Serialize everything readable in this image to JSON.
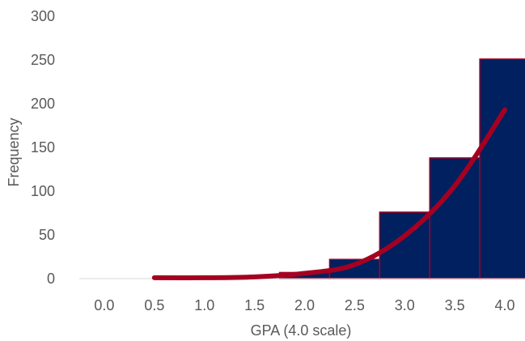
{
  "chart_data": {
    "type": "bar",
    "title": "",
    "xlabel": "GPA (4.0 scale)",
    "ylabel": "Frequency",
    "categories": [
      "0.0",
      "0.5",
      "1.0",
      "1.5",
      "2.0",
      "2.5",
      "3.0",
      "3.5",
      "4.0"
    ],
    "ylim": [
      0,
      300
    ],
    "yticks": [
      0,
      50,
      100,
      150,
      200,
      250,
      300
    ],
    "grid": false,
    "legend": "none",
    "series": [
      {
        "type": "bar",
        "values": [
          0,
          0,
          0,
          0,
          7,
          22,
          76,
          138,
          251
        ],
        "color": "#002060",
        "edge_color": "#A50021"
      },
      {
        "type": "line",
        "values": [
          0,
          1,
          1,
          2,
          6,
          16,
          49,
          106,
          193
        ],
        "color": "#A50021"
      }
    ]
  }
}
